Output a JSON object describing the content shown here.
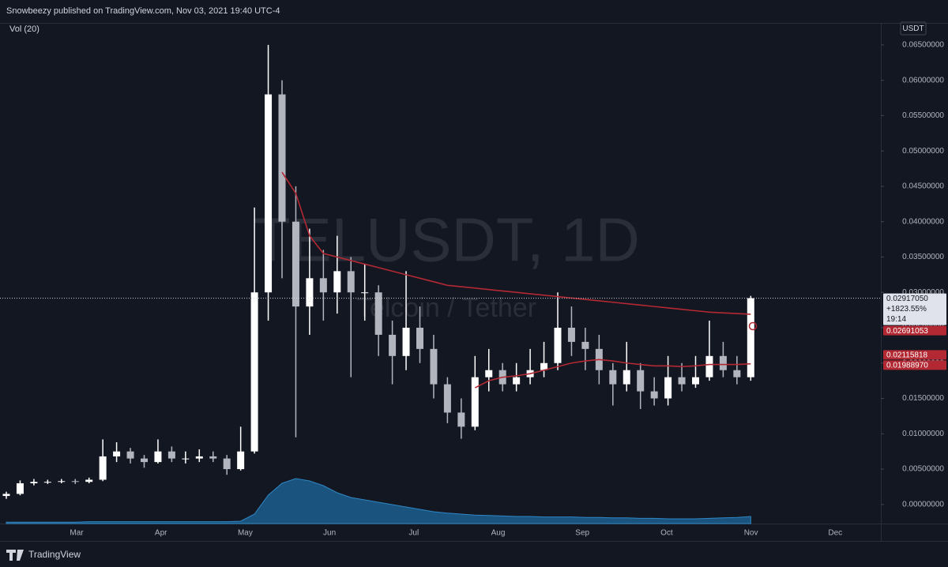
{
  "chart_data": {
    "type": "candlestick",
    "header": "Snowbeezy published on TradingView.com, Nov 03, 2021 19:40 UTC-4",
    "indicator": "Vol (20)",
    "currency": "USDT",
    "watermark": "TELUSDT, 1D",
    "watermark_subtitle": "Telcoin / Tether",
    "brand": "TradingView",
    "up_color": "#ffffff",
    "down_color": "#b2b5be",
    "x_labels": [
      "Mar",
      "Apr",
      "May",
      "Jun",
      "Jul",
      "Aug",
      "Sep",
      "Oct",
      "Nov",
      "Dec"
    ],
    "ylim": [
      -0.0027,
      0.068
    ],
    "yticks": [
      {
        "value": 0.065,
        "label": "0.06500000"
      },
      {
        "value": 0.06,
        "label": "0.06000000"
      },
      {
        "value": 0.055,
        "label": "0.05500000"
      },
      {
        "value": 0.05,
        "label": "0.05000000"
      },
      {
        "value": 0.045,
        "label": "0.04500000"
      },
      {
        "value": 0.04,
        "label": "0.04000000"
      },
      {
        "value": 0.035,
        "label": "0.03500000"
      },
      {
        "value": 0.03,
        "label": "0.03000000"
      },
      {
        "value": 0.025,
        "label": "0.02500000"
      },
      {
        "value": 0.02,
        "label": "0.02000000"
      },
      {
        "value": 0.015,
        "label": "0.01500000"
      },
      {
        "value": 0.01,
        "label": "0.01000000"
      },
      {
        "value": 0.005,
        "label": "0.00500000"
      },
      {
        "value": 0,
        "label": "0.00000000"
      }
    ],
    "open": [
      0.0012,
      0.0015,
      0.003,
      0.0032,
      0.0032,
      0.0033,
      0.0032,
      0.0035,
      0.0068,
      0.0075,
      0.0065,
      0.006,
      0.0075,
      0.0065,
      0.0065,
      0.0068,
      0.0065,
      0.005,
      0.0075,
      0.03,
      0.058,
      0.04,
      0.028,
      0.032,
      0.03,
      0.033,
      0.03,
      0.03,
      0.024,
      0.021,
      0.025,
      0.022,
      0.017,
      0.013,
      0.011,
      0.018,
      0.019,
      0.017,
      0.018,
      0.019,
      0.02,
      0.025,
      0.023,
      0.022,
      0.019,
      0.017,
      0.019,
      0.016,
      0.015,
      0.018,
      0.017,
      0.018,
      0.021,
      0.019,
      0.018
    ],
    "high": [
      0.0018,
      0.0034,
      0.0036,
      0.0035,
      0.0036,
      0.0036,
      0.0038,
      0.0092,
      0.0088,
      0.008,
      0.007,
      0.0092,
      0.0082,
      0.0075,
      0.0078,
      0.0075,
      0.007,
      0.011,
      0.042,
      0.065,
      0.06,
      0.045,
      0.039,
      0.036,
      0.038,
      0.035,
      0.034,
      0.031,
      0.026,
      0.033,
      0.028,
      0.024,
      0.018,
      0.015,
      0.021,
      0.022,
      0.02,
      0.02,
      0.022,
      0.023,
      0.03,
      0.028,
      0.025,
      0.024,
      0.02,
      0.023,
      0.02,
      0.018,
      0.021,
      0.02,
      0.021,
      0.026,
      0.023,
      0.021,
      0.0295
    ],
    "low": [
      0.0008,
      0.0013,
      0.0027,
      0.0029,
      0.003,
      0.0029,
      0.003,
      0.0033,
      0.006,
      0.0058,
      0.0052,
      0.0058,
      0.006,
      0.0058,
      0.006,
      0.006,
      0.0042,
      0.0048,
      0.0072,
      0.026,
      0.032,
      0.0095,
      0.024,
      0.026,
      0.027,
      0.018,
      0.026,
      0.021,
      0.017,
      0.019,
      0.02,
      0.015,
      0.0115,
      0.0093,
      0.0105,
      0.016,
      0.016,
      0.016,
      0.017,
      0.018,
      0.019,
      0.021,
      0.019,
      0.017,
      0.014,
      0.016,
      0.0135,
      0.014,
      0.014,
      0.016,
      0.0165,
      0.0175,
      0.018,
      0.017,
      0.0175
    ],
    "close": [
      0.0015,
      0.003,
      0.0032,
      0.0032,
      0.0033,
      0.0032,
      0.0035,
      0.0068,
      0.0075,
      0.0065,
      0.006,
      0.0075,
      0.0065,
      0.0065,
      0.0068,
      0.0065,
      0.005,
      0.0075,
      0.03,
      0.058,
      0.04,
      0.028,
      0.032,
      0.03,
      0.033,
      0.03,
      0.03,
      0.024,
      0.021,
      0.025,
      0.022,
      0.017,
      0.013,
      0.011,
      0.018,
      0.019,
      0.017,
      0.018,
      0.019,
      0.02,
      0.025,
      0.023,
      0.022,
      0.019,
      0.017,
      0.019,
      0.016,
      0.015,
      0.018,
      0.017,
      0.018,
      0.021,
      0.019,
      0.018,
      0.02917
    ],
    "overlays": [
      {
        "color": "#b22833",
        "values": [
          null,
          null,
          null,
          null,
          null,
          null,
          null,
          null,
          null,
          null,
          null,
          null,
          null,
          null,
          null,
          null,
          null,
          null,
          null,
          null,
          0.047,
          0.044,
          0.038,
          0.0355,
          0.035,
          0.0345,
          0.034,
          0.0335,
          0.033,
          0.0325,
          0.032,
          0.0315,
          0.031,
          0.0308,
          0.0306,
          0.0304,
          0.0302,
          0.03,
          0.0298,
          0.0296,
          0.0294,
          0.0292,
          0.029,
          0.0288,
          0.0286,
          0.0284,
          0.0282,
          0.028,
          0.0278,
          0.0276,
          0.0274,
          0.0272,
          0.0271,
          0.027,
          0.0269
        ]
      },
      {
        "color": "#b22833",
        "values": [
          null,
          null,
          null,
          null,
          null,
          null,
          null,
          null,
          null,
          null,
          null,
          null,
          null,
          null,
          null,
          null,
          null,
          null,
          null,
          null,
          null,
          null,
          null,
          null,
          null,
          null,
          null,
          null,
          null,
          null,
          null,
          null,
          null,
          null,
          0.0165,
          0.0175,
          0.018,
          0.0182,
          0.0185,
          0.019,
          0.0195,
          0.02,
          0.0203,
          0.0205,
          0.0203,
          0.02,
          0.0198,
          0.0196,
          0.0196,
          0.0195,
          0.0196,
          0.0198,
          0.0198,
          0.0198,
          0.0199
        ]
      }
    ],
    "volume": [
      3,
      3,
      3,
      3,
      3,
      3,
      4,
      4,
      4,
      4,
      4,
      4,
      4,
      4,
      4,
      4,
      4,
      5,
      20,
      60,
      85,
      95,
      90,
      80,
      65,
      55,
      50,
      45,
      40,
      35,
      30,
      25,
      22,
      20,
      18,
      17,
      16,
      15,
      15,
      14,
      14,
      14,
      13,
      13,
      12,
      12,
      11,
      11,
      10,
      10,
      10,
      11,
      12,
      13,
      15
    ],
    "volume_lim": [
      0,
      100
    ],
    "volume_color": "#1e6a9e",
    "price_labels": [
      {
        "value": 0.0291705,
        "label": "0.02917050",
        "color": "#e0e3eb"
      },
      {
        "value": 0.02691053,
        "label": "0.02691053",
        "color": "#b22833"
      },
      {
        "value": 0.02115818,
        "label": "0.02115818",
        "color": "#b22833"
      },
      {
        "value": 0.0198897,
        "label": "0.01988970",
        "color": "#b22833"
      }
    ],
    "change_label": "+1823.55%",
    "countdown": "19:14"
  }
}
